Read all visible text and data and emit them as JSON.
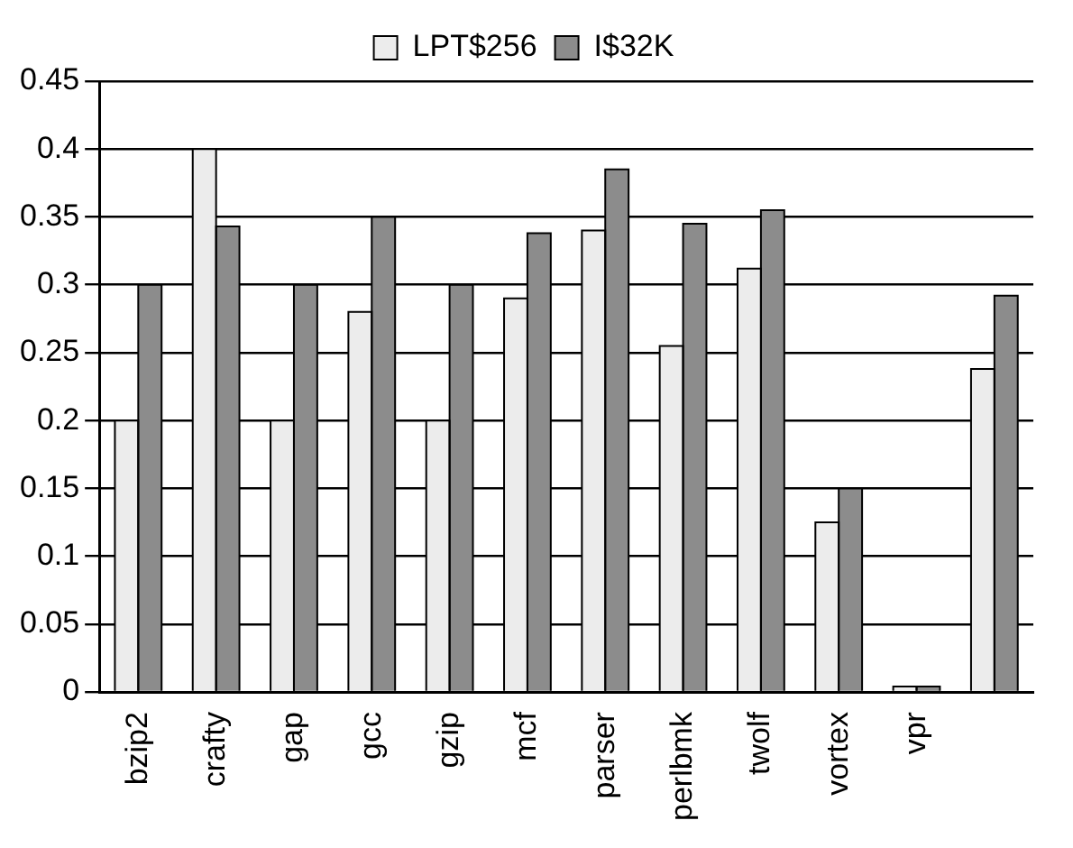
{
  "chart_data": {
    "type": "bar",
    "categories": [
      "bzip2",
      "crafty",
      "gap",
      "gcc",
      "gzip",
      "mcf",
      "parser",
      "perlbmk",
      "twolf",
      "vortex",
      "vpr",
      null
    ],
    "series": [
      {
        "name": "LPT$256",
        "color": "#ececec",
        "values": [
          0.2,
          0.4,
          0.2,
          0.28,
          0.2,
          0.29,
          0.34,
          0.255,
          0.312,
          0.125,
          0.004,
          0.238
        ]
      },
      {
        "name": "I$32K",
        "color": "#8c8c8c",
        "values": [
          0.3,
          0.343,
          0.3,
          0.35,
          0.3,
          0.338,
          0.385,
          0.345,
          0.355,
          0.15,
          0.004,
          0.292
        ]
      }
    ],
    "ylim": [
      0,
      0.45
    ],
    "yticks": [
      0,
      0.05,
      0.1,
      0.15,
      0.2,
      0.25,
      0.3,
      0.35,
      0.4,
      0.45
    ],
    "grid": "y",
    "legend": "top"
  }
}
